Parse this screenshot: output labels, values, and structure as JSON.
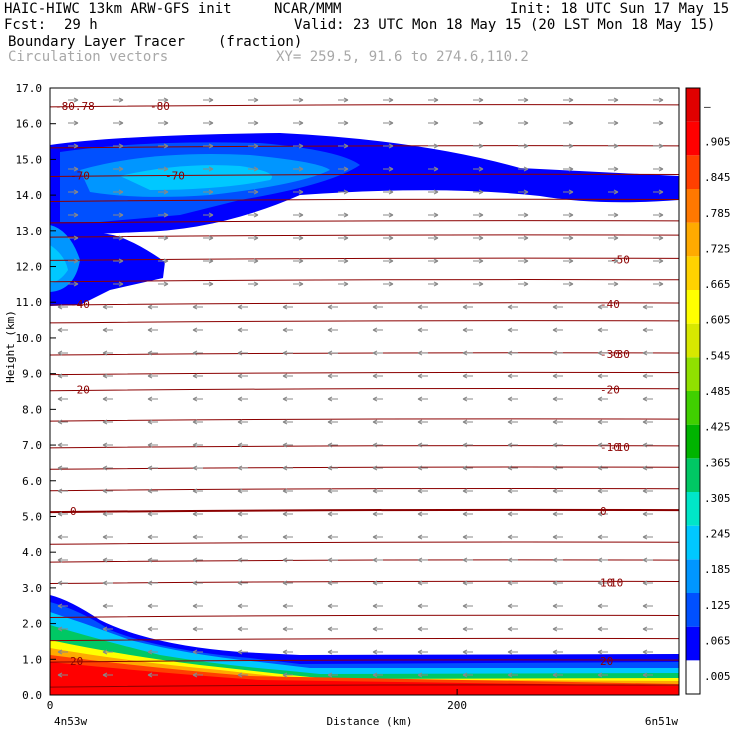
{
  "header": {
    "model": "HAIC-HIWC 13km ARW-GFS init",
    "org": "NCAR/MMM",
    "init": "Init: 18 UTC Sun 17 May 15",
    "fcst_label": "Fcst:",
    "fcst_value": "29 h",
    "valid": "Valid: 23 UTC Mon 18 May 15 (20 LST Mon 18 May 15)",
    "field": "Boundary Layer Tracer",
    "units": "(fraction)",
    "vectors": "Circulation vectors",
    "xy": "XY= 259.5, 91.6 to 274.6,110.2"
  },
  "chart_data": {
    "type": "heatmap",
    "title": "Boundary Layer Tracer",
    "xlabel": "Distance (km)",
    "ylabel": "Height (km)",
    "x_start_label": "4n53w",
    "x_end_label": "6n51w",
    "xlim": [
      0,
      309
    ],
    "ylim": [
      0,
      17
    ],
    "x_ticks": [
      "0",
      "200"
    ],
    "y_ticks": [
      "0.0",
      "1.0",
      "2.0",
      "3.0",
      "4.0",
      "5.0",
      "6.0",
      "7.0",
      "8.0",
      "9.0",
      "10.0",
      "11.0",
      "12.0",
      "13.0",
      "14.0",
      "15.0",
      "16.0",
      "17.0"
    ],
    "colorbar_labels": [
      ".005",
      ".065",
      ".125",
      ".185",
      ".245",
      ".305",
      ".365",
      ".425",
      ".485",
      ".545",
      ".605",
      ".665",
      ".725",
      ".785",
      ".845",
      ".905",
      "–"
    ],
    "colorbar_colors": [
      "#ffffff",
      "#0000ff",
      "#0050ff",
      "#0096ff",
      "#00c8ff",
      "#00e6c8",
      "#00c864",
      "#00b400",
      "#40d000",
      "#90e000",
      "#d8e800",
      "#ffff00",
      "#ffd200",
      "#ffaa00",
      "#ff7800",
      "#ff4000",
      "#ff0000",
      "#e00000"
    ],
    "temperature_contours": [
      {
        "label": "20",
        "height": 0.95
      },
      {
        "label": "10",
        "height": 3.15
      },
      {
        "label": "0",
        "height": 5.15
      },
      {
        "label": "-10",
        "height": 6.95
      },
      {
        "label": "-20",
        "height": 8.55
      },
      {
        "label": "-30",
        "height": 9.55
      },
      {
        "label": "-40",
        "height": 10.95
      },
      {
        "label": "-50",
        "height": 12.2
      },
      {
        "label": "-70",
        "height": 14.55
      },
      {
        "label": "-80",
        "height": 16.5
      },
      {
        "label": "-80.78",
        "height": 16.5
      }
    ],
    "contour_color": "#8b0000",
    "vector_color": "#888888",
    "grid": false
  }
}
